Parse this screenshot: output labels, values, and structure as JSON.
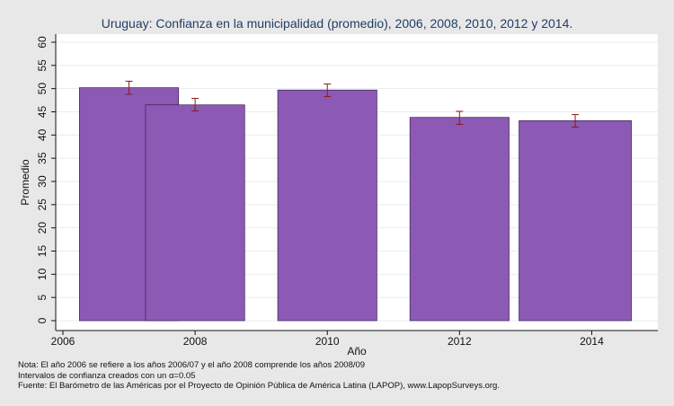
{
  "chart_data": {
    "type": "bar",
    "title": "Uruguay: Confianza en la municipalidad (promedio), 2006, 2008, 2010, 2012 y 2014.",
    "xlabel": "Año",
    "ylabel": "Promedio",
    "xlim": [
      2006,
      2015
    ],
    "ylim": [
      0,
      60
    ],
    "x_ticks": [
      "2006",
      "2008",
      "2010",
      "2012",
      "2014"
    ],
    "y_ticks": [
      "0",
      "5",
      "10",
      "15",
      "20",
      "25",
      "30",
      "35",
      "40",
      "45",
      "50",
      "55",
      "60"
    ],
    "grid": true,
    "bar_color": "#8c5ab4",
    "error_color": "#8b1a1a",
    "bars": [
      {
        "x_start": 2006.25,
        "x_end": 2007.75,
        "value": 50.2,
        "ci_low": 48.8,
        "ci_high": 51.6
      },
      {
        "x_start": 2007.25,
        "x_end": 2008.75,
        "value": 46.5,
        "ci_low": 45.2,
        "ci_high": 47.9
      },
      {
        "x_start": 2009.25,
        "x_end": 2010.75,
        "value": 49.7,
        "ci_low": 48.3,
        "ci_high": 51.0
      },
      {
        "x_start": 2011.25,
        "x_end": 2012.75,
        "value": 43.8,
        "ci_low": 42.3,
        "ci_high": 45.1
      },
      {
        "x_start": 2012.9,
        "x_end": 2014.6,
        "value": 43.1,
        "ci_low": 41.7,
        "ci_high": 44.4
      }
    ]
  },
  "notes": [
    "Nota: El año 2006 se refiere a los años 2006/07 y el año 2008 comprende los años 2008/09",
    "Intervalos de confianza creados con un α=0.05",
    "Fuente: El Barómetro de las Américas por el Proyecto de Opinión Pública de América Latina (LAPOP), www.LapopSurveys.org."
  ]
}
